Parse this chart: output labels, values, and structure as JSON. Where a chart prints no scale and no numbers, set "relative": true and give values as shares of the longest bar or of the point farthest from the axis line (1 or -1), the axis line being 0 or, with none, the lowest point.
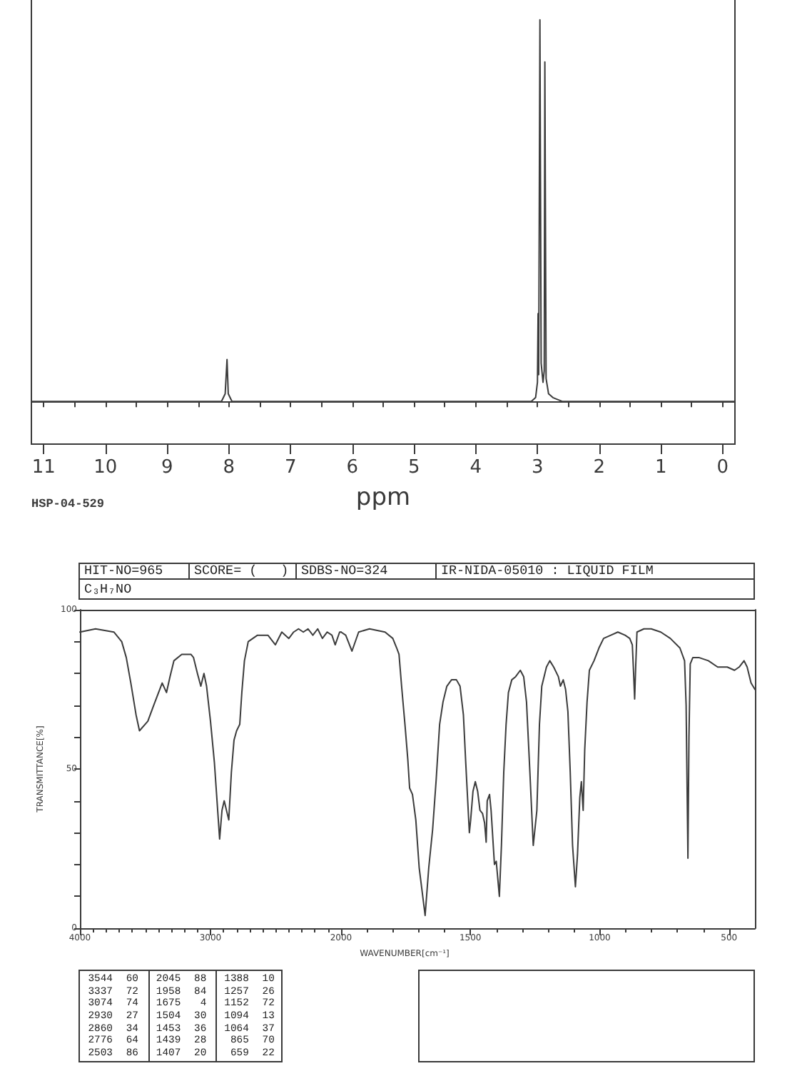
{
  "chart_data": [
    {
      "type": "line",
      "xlabel": "ppm",
      "annotations": [
        "HSP-04-529"
      ],
      "relative": true,
      "color": "#3c3c3c",
      "marker": "none",
      "x": [
        11.2,
        8.12,
        8.06,
        8.03,
        8.01,
        7.95,
        3.1,
        3.03,
        3.0,
        2.99,
        2.98,
        2.96,
        2.94,
        2.91,
        2.89,
        2.88,
        2.86,
        2.82,
        2.75,
        2.6,
        -0.2
      ],
      "values": [
        0,
        0,
        0.02,
        0.11,
        0.02,
        0,
        0,
        0.01,
        0.05,
        0.23,
        0.07,
        1,
        0.1,
        0.05,
        0.08,
        0.89,
        0.06,
        0.02,
        0.01,
        0,
        0
      ],
      "xlim": [
        11.2,
        -0.2
      ],
      "xticks": [
        11,
        {
          "value": 10.5,
          "label": null
        },
        10,
        {
          "value": 9.5,
          "label": null
        },
        9,
        {
          "value": 8.5,
          "label": null
        },
        8,
        {
          "value": 7.5,
          "label": null
        },
        7,
        {
          "value": 6.5,
          "label": null
        },
        6,
        {
          "value": 5.5,
          "label": null
        },
        5,
        {
          "value": 4.5,
          "label": null
        },
        4,
        {
          "value": 3.5,
          "label": null
        },
        3,
        {
          "value": 2.5,
          "label": null
        },
        2,
        {
          "value": 1.5,
          "label": null
        },
        1,
        {
          "value": 0.5,
          "label": null
        },
        0
      ]
    },
    {
      "type": "line",
      "title": "C₃H₇NO",
      "ylabel": "TRANSMITTANCE[%]",
      "color": "#3c3c3c",
      "marker": "none",
      "annotations": [
        "HIT-NO=965",
        "SCORE= (   )",
        "SDBS-NO=324",
        "IR-NIDA-05010 : LIQUID FILM",
        "3544",
        "60",
        "3337",
        "72",
        "3074",
        "74",
        "2930",
        "27",
        "2860",
        "34",
        "2776",
        "64",
        "2503",
        "86",
        "2045",
        "88",
        "1958",
        "84",
        "1675",
        "4",
        "1504",
        "30",
        "1453",
        "36",
        "1439",
        "28",
        "1407",
        "20",
        "1388",
        "10",
        "1257",
        "26",
        "1152",
        "72",
        "1094",
        "13",
        "1064",
        "37",
        "865",
        "70",
        "659",
        "22"
      ],
      "x": [
        4000,
        3880,
        3740,
        3680,
        3645,
        3610,
        3570,
        3544,
        3480,
        3435,
        3370,
        3337,
        3310,
        3280,
        3220,
        3150,
        3130,
        3100,
        3074,
        3050,
        3030,
        3000,
        2970,
        2950,
        2930,
        2912,
        2895,
        2860,
        2840,
        2820,
        2800,
        2776,
        2760,
        2740,
        2711,
        2640,
        2560,
        2503,
        2454,
        2400,
        2363,
        2326,
        2289,
        2253,
        2216,
        2179,
        2143,
        2106,
        2070,
        2045,
        2011,
        2000
      ],
      "values": [
        93,
        94,
        93,
        90,
        85,
        77,
        67,
        62,
        65,
        70,
        77,
        74,
        79,
        84,
        86,
        86,
        85,
        80,
        76,
        80,
        76,
        65,
        52,
        40,
        28,
        37,
        40,
        34,
        49,
        59,
        62,
        64,
        74,
        84,
        90,
        92,
        92,
        89,
        93,
        91,
        93,
        94,
        93,
        94,
        92,
        94,
        91,
        93,
        92,
        89,
        93,
        93
      ],
      "xlim": [
        4000,
        2000
      ],
      "xticks": [
        4000,
        {
          "value": 3900,
          "label": null
        },
        {
          "value": 3800,
          "label": null
        },
        {
          "value": 3700,
          "label": null
        },
        {
          "value": 3600,
          "label": null
        },
        {
          "value": 3500,
          "label": null
        },
        {
          "value": 3400,
          "label": null
        },
        {
          "value": 3300,
          "label": null
        },
        {
          "value": 3200,
          "label": null
        },
        {
          "value": 3100,
          "label": null
        },
        3000,
        {
          "value": 2900,
          "label": null
        },
        {
          "value": 2800,
          "label": null
        },
        {
          "value": 2700,
          "label": null
        },
        {
          "value": 2600,
          "label": null
        },
        {
          "value": 2500,
          "label": null
        },
        {
          "value": 2400,
          "label": null
        },
        {
          "value": 2300,
          "label": null
        },
        {
          "value": 2200,
          "label": null
        },
        {
          "value": 2100,
          "label": null
        },
        2000
      ],
      "ylim": [
        0,
        100
      ],
      "yticks": [
        0,
        {
          "value": 10,
          "label": null
        },
        {
          "value": 20,
          "label": null
        },
        {
          "value": 30,
          "label": null
        },
        {
          "value": 40,
          "label": null
        },
        50,
        {
          "value": 60,
          "label": null
        },
        {
          "value": 70,
          "label": null
        },
        {
          "value": 80,
          "label": null
        },
        {
          "value": 90,
          "label": null
        },
        100
      ]
    },
    {
      "type": "line",
      "xlabel": "WAVENUMBER[cm⁻¹]",
      "color": "#3c3c3c",
      "marker": "none",
      "tick_labels": "x",
      "x": [
        2000,
        1982,
        1958,
        1932,
        1890,
        1830,
        1800,
        1785,
        1776,
        1766,
        1753,
        1742,
        1735,
        1724,
        1711,
        1698,
        1675,
        1661,
        1646,
        1632,
        1619,
        1606,
        1591,
        1573,
        1554,
        1540,
        1527,
        1518,
        1504,
        1499,
        1490,
        1481,
        1472,
        1463,
        1453,
        1445,
        1439,
        1435,
        1426,
        1420,
        1407,
        1400,
        1388,
        1380,
        1371,
        1362,
        1353,
        1340,
        1325,
        1307,
        1294,
        1283,
        1270,
        1257,
        1243,
        1233,
        1224,
        1206,
        1193,
        1178,
        1160,
        1152,
        1141,
        1132,
        1123,
        1114,
        1105,
        1094,
        1086,
        1077,
        1071,
        1064,
        1058,
        1049,
        1040,
        1022,
        1003,
        985,
        957,
        930,
        902,
        884,
        874,
        869,
        865,
        861,
        856,
        829,
        801,
        764,
        727,
        690,
        672,
        666,
        659,
        655,
        650,
        640,
        617,
        580,
        544,
        507,
        479,
        461,
        442,
        430,
        415,
        400
      ],
      "values": [
        93,
        92,
        87,
        93,
        94,
        93,
        91,
        88,
        86,
        76,
        64,
        53,
        44,
        42,
        34,
        19,
        4,
        19,
        31,
        47,
        64,
        71,
        76,
        78,
        78,
        76,
        67,
        52,
        30,
        34,
        43,
        46,
        43,
        37,
        36,
        33,
        27,
        40,
        42,
        37,
        20,
        21,
        10,
        26,
        49,
        64,
        74,
        78,
        79,
        81,
        79,
        71,
        49,
        26,
        37,
        64,
        76,
        82,
        84,
        82,
        79,
        76,
        78,
        75,
        68,
        49,
        26,
        13,
        23,
        41,
        46,
        37,
        56,
        71,
        81,
        84,
        88,
        91,
        92,
        93,
        92,
        91,
        89,
        80,
        72,
        82,
        93,
        94,
        94,
        93,
        91,
        88,
        84,
        70,
        22,
        60,
        83,
        85,
        85,
        84,
        82,
        82,
        81,
        82,
        84,
        82,
        77,
        75
      ],
      "xlim": [
        2000,
        400
      ],
      "xticks": [
        {
          "value": 1900,
          "label": null
        },
        {
          "value": 1800,
          "label": null
        },
        {
          "value": 1700,
          "label": null
        },
        {
          "value": 1600,
          "label": null
        },
        1500,
        {
          "value": 1400,
          "label": null
        },
        {
          "value": 1300,
          "label": null
        },
        {
          "value": 1200,
          "label": null
        },
        {
          "value": 1100,
          "label": null
        },
        1000,
        {
          "value": 900,
          "label": null
        },
        {
          "value": 800,
          "label": null
        },
        {
          "value": 700,
          "label": null
        },
        {
          "value": 600,
          "label": null
        },
        500
      ],
      "ylim": [
        0,
        100
      ]
    }
  ]
}
